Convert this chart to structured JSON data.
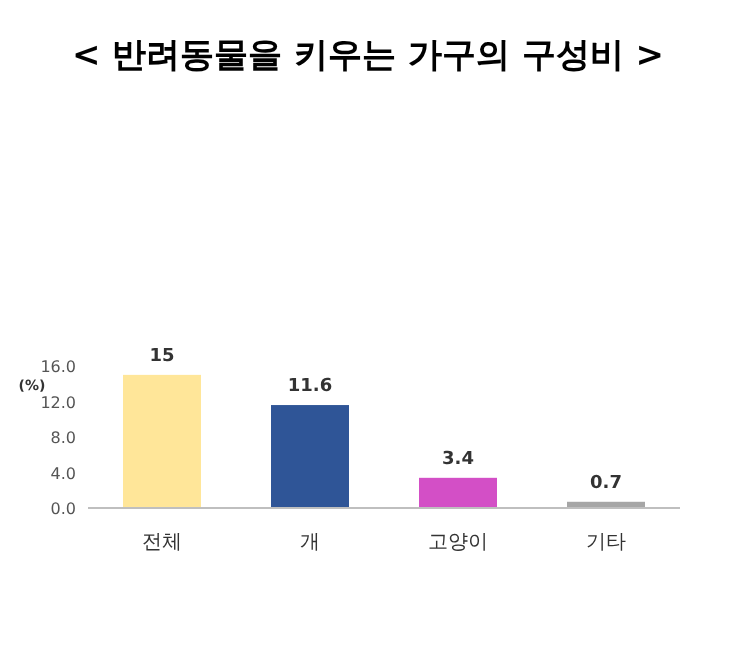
{
  "chart_data": {
    "type": "bar",
    "title": "< 반려동물을 키우는 가구의 구성비 >",
    "ylabel": "(%)",
    "categories": [
      "전체",
      "개",
      "고양이",
      "기타"
    ],
    "values": [
      15,
      11.6,
      3.4,
      0.7
    ],
    "colors": [
      "#ffe699",
      "#2f5597",
      "#d34fc6",
      "#a6a6a6"
    ],
    "ylim": [
      0,
      16
    ],
    "yticks": [
      {
        "value": 0,
        "label": "0.0"
      },
      {
        "value": 4,
        "label": "4.0"
      },
      {
        "value": 8,
        "label": "8.0"
      },
      {
        "value": 12,
        "label": "12.0"
      },
      {
        "value": 16,
        "label": "16.0"
      }
    ],
    "data_labels": true
  }
}
